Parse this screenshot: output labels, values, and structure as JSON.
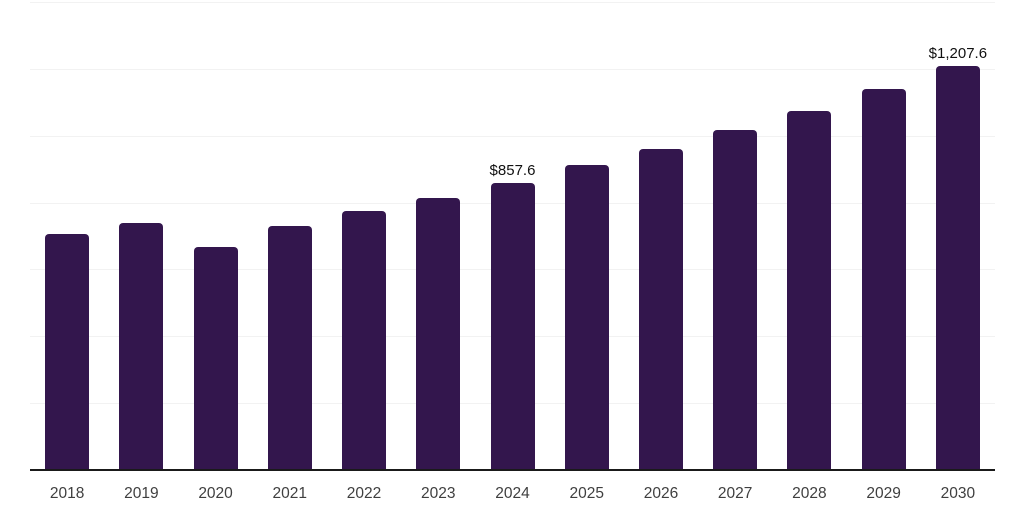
{
  "chart_data": {
    "type": "bar",
    "title": "",
    "xlabel": "",
    "ylabel": "",
    "categories": [
      "2018",
      "2019",
      "2020",
      "2021",
      "2022",
      "2023",
      "2024",
      "2025",
      "2026",
      "2027",
      "2028",
      "2029",
      "2030"
    ],
    "values": [
      705.1,
      738.0,
      668.0,
      730.8,
      775.7,
      812.8,
      857.6,
      912.4,
      960.3,
      1017.1,
      1074.8,
      1140.7,
      1207.6
    ],
    "value_labels": [
      "",
      "",
      "",
      "",
      "",
      "",
      "$857.6",
      "",
      "",
      "",
      "",
      "",
      "$1,207.6"
    ],
    "ylim": [
      0,
      1400
    ],
    "gridline_step": 200,
    "grid": true,
    "legend": false,
    "colors": {
      "bar": "#33164d",
      "gridline": "#f2f2f2",
      "axis": "#1a1a1a",
      "tick_text": "#3f3f3f",
      "value_label_text": "#111111",
      "background": "#ffffff"
    }
  }
}
